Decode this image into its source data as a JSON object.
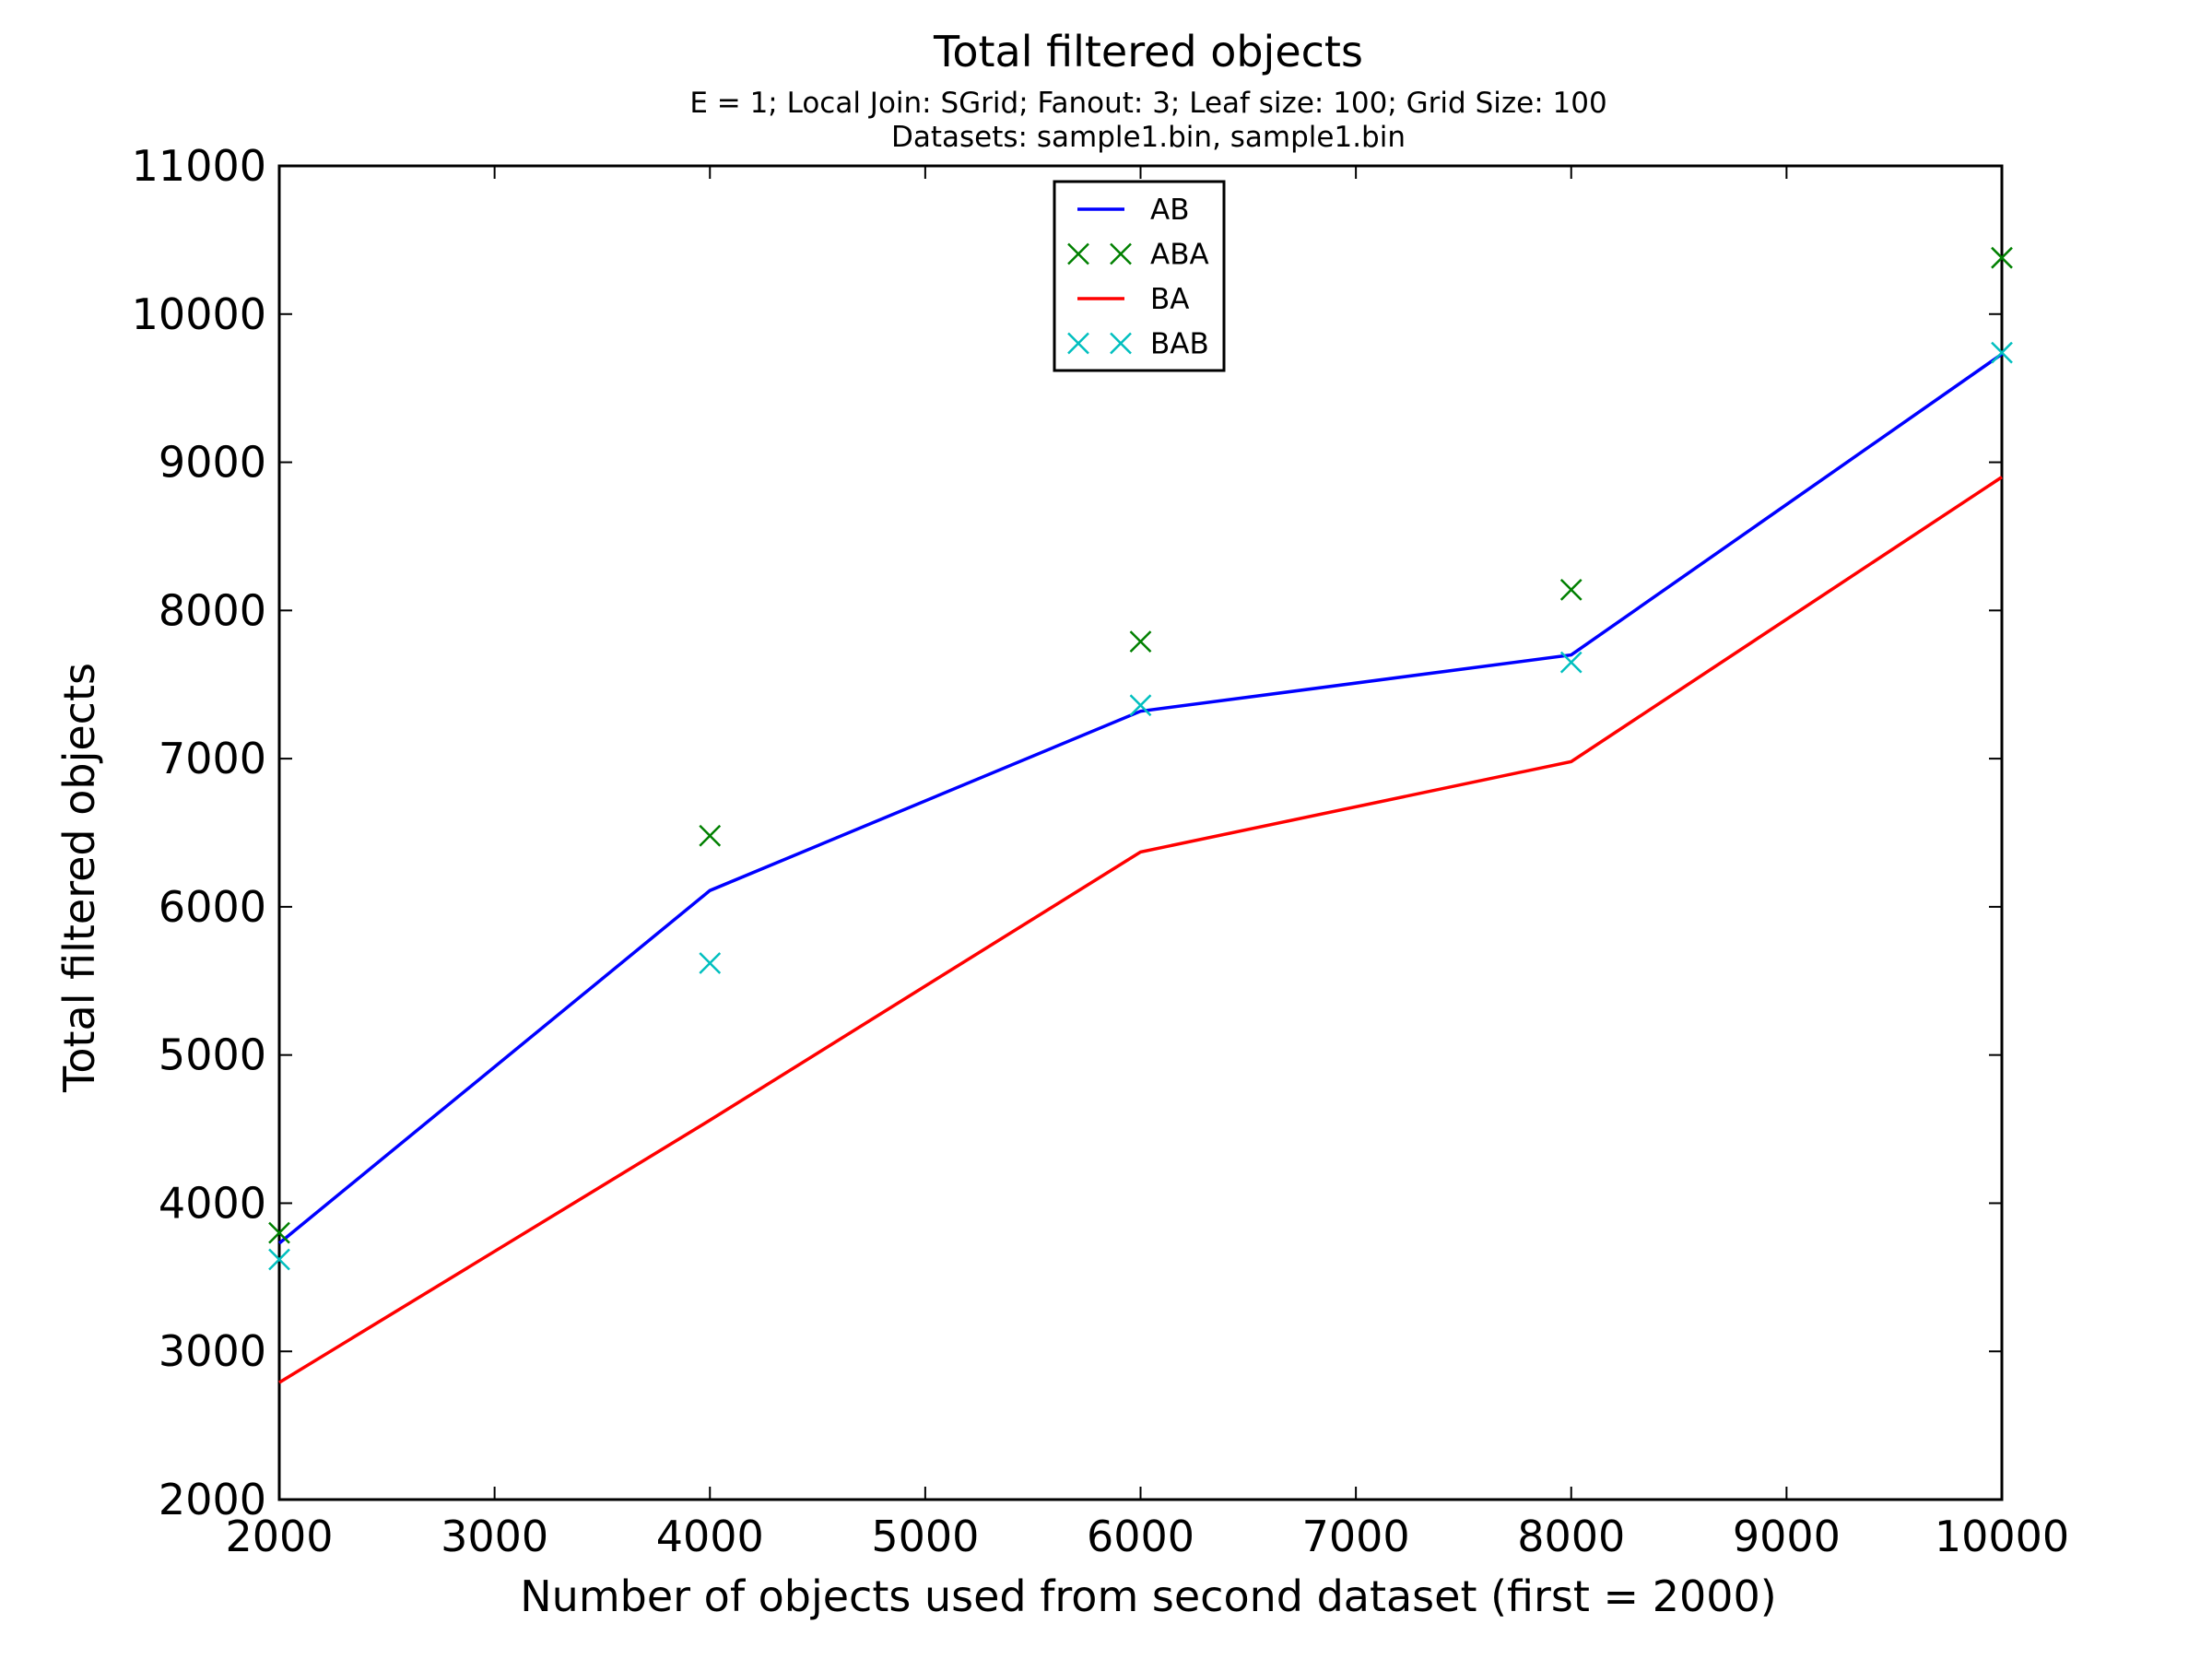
{
  "chart_data": {
    "type": "line",
    "title": "Total filtered objects",
    "subtitle_lines": [
      "E = 1; Local Join: SGrid; Fanout: 3; Leaf size: 100; Grid Size: 100",
      "Datasets: sample1.bin, sample1.bin"
    ],
    "xlabel": "Number of objects used from second dataset (first = 2000)",
    "ylabel": "Total filtered objects",
    "xlim": [
      2000,
      10000
    ],
    "ylim": [
      2000,
      11000
    ],
    "x_ticks": [
      2000,
      3000,
      4000,
      5000,
      6000,
      7000,
      8000,
      9000,
      10000
    ],
    "y_ticks": [
      2000,
      3000,
      4000,
      5000,
      6000,
      7000,
      8000,
      9000,
      10000,
      11000
    ],
    "x_tick_labels": [
      "2000",
      "3000",
      "4000",
      "5000",
      "6000",
      "7000",
      "8000",
      "9000",
      "10000"
    ],
    "y_tick_labels": [
      "2000",
      "3000",
      "4000",
      "5000",
      "6000",
      "7000",
      "8000",
      "9000",
      "10000",
      "11000"
    ],
    "grid": false,
    "legend_position": "top-center",
    "x": [
      2000,
      4000,
      6000,
      8000,
      10000
    ],
    "series": [
      {
        "name": "AB",
        "style": "line",
        "color": "#0000ff",
        "values": [
          3730,
          6110,
          7320,
          7700,
          9730
        ]
      },
      {
        "name": "ABA",
        "style": "x-markers",
        "color": "#008000",
        "values": [
          3800,
          6480,
          7790,
          8140,
          10380
        ]
      },
      {
        "name": "BA",
        "style": "line",
        "color": "#ff0000",
        "values": [
          2790,
          4560,
          6370,
          6980,
          8900
        ]
      },
      {
        "name": "BAB",
        "style": "x-markers",
        "color": "#00bfbf",
        "values": [
          3620,
          5620,
          7360,
          7650,
          9740
        ]
      }
    ]
  }
}
